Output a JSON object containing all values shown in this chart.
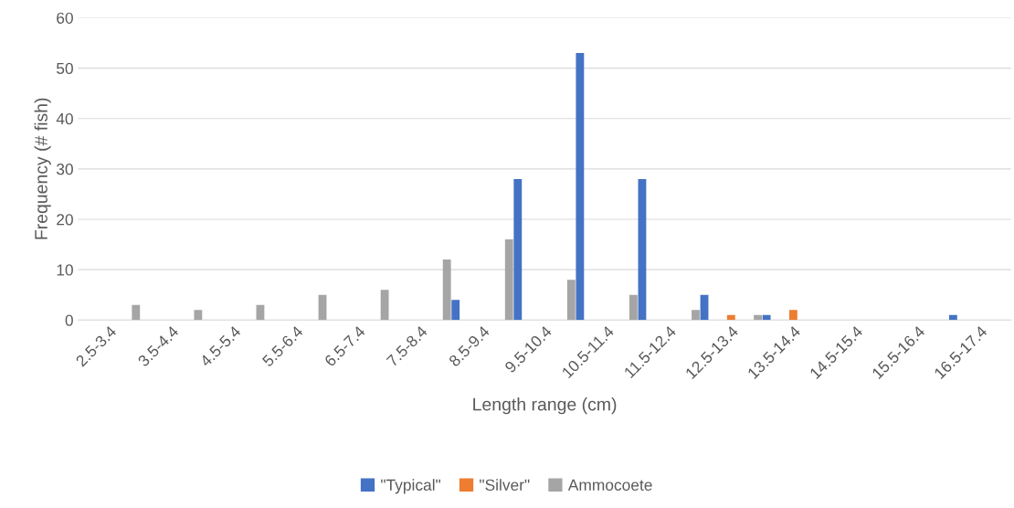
{
  "chart_data": {
    "type": "bar",
    "xlabel": "Length range (cm)",
    "ylabel": "Frequency (# fish)",
    "categories": [
      "2.5-3.4",
      "3.5-4.4",
      "4.5-5.4",
      "5.5-6.4",
      "6.5-7.4",
      "7.5-8.4",
      "8.5-9.4",
      "9.5-10.4",
      "10.5-11.4",
      "11.5-12.4",
      "12.5-13.4",
      "13.5-14.4",
      "14.5-15.4",
      "15.5-16.4",
      "16.5-17.4"
    ],
    "series": [
      {
        "name": "\"Typical\"",
        "color": "#4472c4",
        "values": [
          0,
          0,
          0,
          0,
          0,
          0,
          4,
          28,
          53,
          28,
          5,
          1,
          0,
          0,
          1
        ]
      },
      {
        "name": "\"Silver\"",
        "color": "#ed7d31",
        "values": [
          0,
          0,
          0,
          0,
          0,
          0,
          0,
          0,
          0,
          0,
          1,
          2,
          0,
          0,
          0
        ]
      },
      {
        "name": "Ammocoete",
        "color": "#a5a5a5",
        "values": [
          3,
          2,
          3,
          5,
          6,
          12,
          16,
          8,
          5,
          2,
          1,
          0,
          0,
          0,
          0
        ]
      }
    ],
    "ylim": [
      0,
      60
    ],
    "yticks": [
      0,
      10,
      20,
      30,
      40,
      50,
      60
    ],
    "grid": "y",
    "legend": "bottom"
  }
}
